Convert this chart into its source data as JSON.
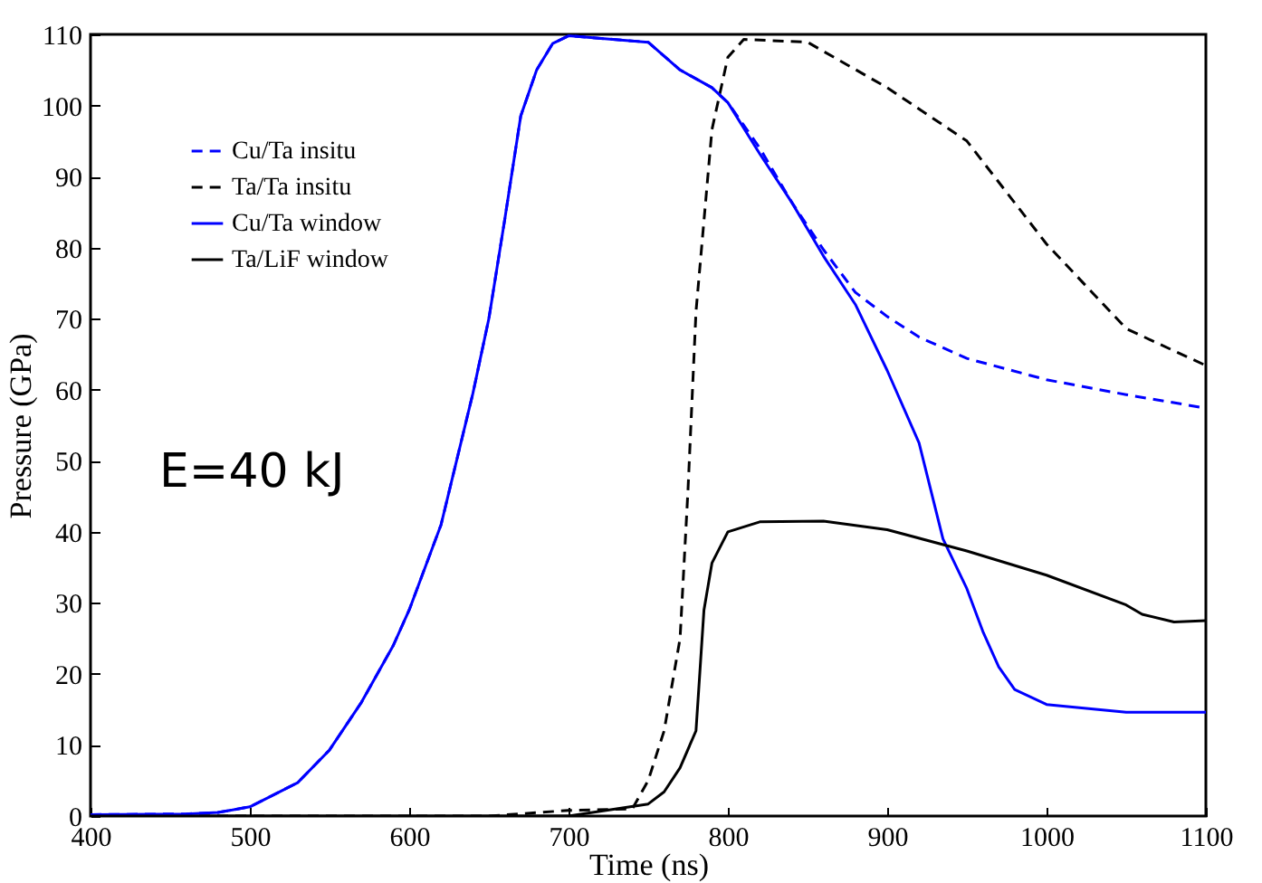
{
  "chart_data": {
    "type": "line",
    "xlabel": "Time (ns)",
    "ylabel": "Pressure (GPa)",
    "xlim": [
      400,
      1100
    ],
    "ylim": [
      0,
      110
    ],
    "xticks": [
      400,
      500,
      600,
      700,
      800,
      900,
      1000,
      1100
    ],
    "yticks": [
      0,
      10,
      20,
      30,
      40,
      50,
      60,
      70,
      80,
      90,
      100,
      110
    ],
    "grid": false,
    "legend": "top left",
    "annotations": [
      "E=40 kJ"
    ],
    "series": [
      {
        "name": "Cu/Ta insitu",
        "color": "#0000ff",
        "line_style": "dashed",
        "x": [
          400,
          460,
          480,
          500,
          530,
          550,
          570,
          590,
          600,
          620,
          640,
          650,
          660,
          670,
          680,
          690,
          700,
          750,
          770,
          790,
          800,
          820,
          840,
          860,
          880,
          900,
          920,
          950,
          1000,
          1050,
          1100
        ],
        "values": [
          0.2,
          0.3,
          0.5,
          1.3,
          4.7,
          9.3,
          16,
          24,
          29,
          41,
          59.5,
          70,
          84,
          98.5,
          105,
          108.7,
          109.8,
          108.9,
          105,
          102.5,
          100.4,
          94,
          86.4,
          79.7,
          73.7,
          70.3,
          67.4,
          64.4,
          61.4,
          59.3,
          57.4
        ]
      },
      {
        "name": "Ta/Ta insitu",
        "color": "#000000",
        "line_style": "dashed",
        "x": [
          400,
          650,
          700,
          740,
          750,
          760,
          770,
          775,
          780,
          790,
          800,
          810,
          850,
          900,
          950,
          1000,
          1050,
          1070,
          1100
        ],
        "values": [
          0,
          0,
          0.8,
          1,
          5,
          12,
          25,
          46,
          71,
          96.6,
          106.8,
          109.3,
          108.9,
          102.5,
          95,
          80.5,
          68.6,
          66.5,
          63.4
        ]
      },
      {
        "name": "Cu/Ta window",
        "color": "#0000ff",
        "line_style": "solid",
        "x": [
          400,
          460,
          480,
          500,
          530,
          550,
          570,
          590,
          600,
          620,
          640,
          650,
          660,
          670,
          680,
          690,
          700,
          750,
          770,
          790,
          800,
          820,
          840,
          860,
          880,
          900,
          920,
          935,
          950,
          960,
          970,
          980,
          1000,
          1050,
          1100
        ],
        "values": [
          0.2,
          0.3,
          0.5,
          1.3,
          4.7,
          9.3,
          16,
          24,
          29,
          41,
          59.5,
          70,
          84,
          98.5,
          105,
          108.7,
          109.8,
          108.9,
          105,
          102.5,
          100.4,
          93.2,
          86.4,
          78.8,
          72,
          62.7,
          52.5,
          39,
          32,
          26,
          21,
          17.8,
          15.7,
          14.6,
          14.6
        ]
      },
      {
        "name": "Ta/LiF window",
        "color": "#000000",
        "line_style": "solid",
        "x": [
          400,
          700,
          750,
          760,
          770,
          780,
          785,
          790,
          800,
          820,
          860,
          900,
          950,
          1000,
          1050,
          1060,
          1080,
          1100
        ],
        "values": [
          0,
          0,
          1.7,
          3.4,
          6.8,
          12,
          29,
          35.6,
          40,
          41.4,
          41.5,
          40.3,
          37.3,
          33.9,
          29.7,
          28.4,
          27.3,
          27.5
        ]
      }
    ]
  }
}
